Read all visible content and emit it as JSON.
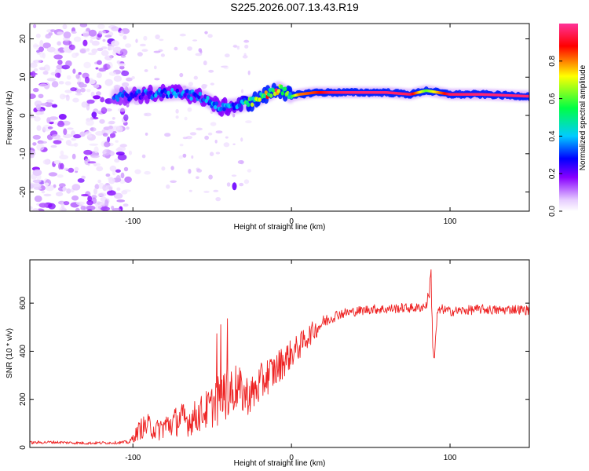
{
  "title": "S225.2026.007.13.43.R19",
  "chart_data": [
    {
      "type": "heatmap",
      "name": "spectrogram",
      "xlabel": "Height of straight line (km)",
      "ylabel": "Frequency (Hz)",
      "xlim": [
        -165,
        150
      ],
      "ylim": [
        -25,
        24
      ],
      "x_ticks": [
        -100,
        0,
        100
      ],
      "y_ticks": [
        -20,
        -10,
        0,
        10,
        20
      ],
      "colorbar": {
        "label": "Normalized spectral amplitude",
        "range": [
          0,
          1
        ],
        "ticks": [
          "0.0",
          "0.2",
          "0.4",
          "0.6",
          "0.8"
        ],
        "colors": [
          "#ffffff",
          "#e6ccff",
          "#8800ff",
          "#0000ff",
          "#00ccff",
          "#00ff44",
          "#ffff00",
          "#ff0000",
          "#ff3399"
        ]
      },
      "ridge": {
        "x": [
          -110,
          -90,
          -70,
          -55,
          -45,
          -35,
          -25,
          -15,
          -8,
          0,
          5,
          15,
          25,
          40,
          60,
          75,
          85,
          100,
          120,
          150
        ],
        "y": [
          5,
          5.5,
          6,
          4.5,
          2,
          2.5,
          3.5,
          5.5,
          7,
          5,
          5.5,
          6,
          6,
          6,
          6,
          5.5,
          6.5,
          5.5,
          5.5,
          5
        ],
        "amplitude": [
          0.3,
          0.35,
          0.35,
          0.35,
          0.35,
          0.4,
          0.6,
          0.75,
          0.85,
          0.55,
          0.8,
          0.85,
          0.95,
          0.97,
          0.97,
          0.95,
          0.6,
          0.95,
          0.97,
          0.97
        ]
      }
    },
    {
      "type": "line",
      "name": "snr",
      "xlabel": "Height of straight line (km)",
      "ylabel": "SNR (10 * v/v)",
      "xlim": [
        -165,
        150
      ],
      "ylim": [
        0,
        780
      ],
      "x_ticks": [
        -100,
        0,
        100
      ],
      "y_ticks": [
        0,
        200,
        400,
        600
      ],
      "series": [
        {
          "name": "SNR",
          "color": "#ee2222",
          "x": [
            -165,
            -150,
            -130,
            -110,
            -102,
            -100,
            -95,
            -90,
            -85,
            -80,
            -75,
            -70,
            -65,
            -60,
            -55,
            -50,
            -45,
            -40,
            -35,
            -30,
            -25,
            -20,
            -15,
            -10,
            -5,
            0,
            5,
            10,
            15,
            20,
            25,
            30,
            40,
            50,
            60,
            70,
            80,
            85,
            87,
            88,
            89,
            90,
            92,
            95,
            100,
            110,
            120,
            130,
            140,
            150
          ],
          "y": [
            20,
            22,
            18,
            20,
            22,
            40,
            80,
            90,
            70,
            90,
            100,
            120,
            110,
            130,
            150,
            170,
            200,
            230,
            250,
            220,
            220,
            260,
            300,
            320,
            360,
            390,
            420,
            460,
            490,
            520,
            540,
            555,
            565,
            575,
            575,
            580,
            580,
            590,
            650,
            730,
            450,
            360,
            560,
            575,
            565,
            570,
            575,
            570,
            575,
            570
          ],
          "noise": [
            6,
            6,
            6,
            6,
            8,
            20,
            45,
            50,
            45,
            55,
            60,
            70,
            65,
            70,
            80,
            90,
            110,
            110,
            100,
            90,
            80,
            85,
            80,
            75,
            70,
            60,
            55,
            50,
            40,
            30,
            25,
            22,
            20,
            20,
            20,
            20,
            20,
            20,
            30,
            40,
            40,
            20,
            20,
            20,
            20,
            20,
            20,
            20,
            20,
            20
          ]
        }
      ]
    }
  ]
}
